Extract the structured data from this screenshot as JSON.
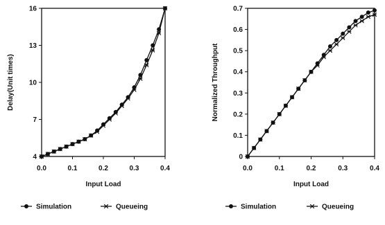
{
  "colors": {
    "ink": "#111111",
    "paper": "#ffffff"
  },
  "chart_data": [
    {
      "type": "line",
      "xlabel": "Input Load",
      "ylabel": "Delay(Unit times)",
      "xlim": [
        0.0,
        0.4
      ],
      "ylim": [
        4,
        16
      ],
      "xticks": [
        "0.0",
        "0.1",
        "0.2",
        "0.3",
        "0.4"
      ],
      "yticks": [
        "4",
        "7",
        "10",
        "13",
        "16"
      ],
      "grid": false,
      "legend_position": "bottom",
      "series": [
        {
          "name": "Simulation",
          "marker": "circle",
          "x": [
            0.0,
            0.02,
            0.04,
            0.06,
            0.08,
            0.1,
            0.12,
            0.14,
            0.16,
            0.18,
            0.2,
            0.22,
            0.24,
            0.26,
            0.28,
            0.3,
            0.32,
            0.34,
            0.36,
            0.38,
            0.4
          ],
          "y": [
            4.0,
            4.2,
            4.4,
            4.6,
            4.8,
            5.0,
            5.2,
            5.4,
            5.7,
            6.1,
            6.6,
            7.1,
            7.6,
            8.2,
            8.8,
            9.6,
            10.6,
            11.8,
            13.0,
            14.3,
            16.0
          ]
        },
        {
          "name": "Queueing",
          "marker": "cross",
          "x": [
            0.0,
            0.02,
            0.04,
            0.06,
            0.08,
            0.1,
            0.12,
            0.14,
            0.16,
            0.18,
            0.2,
            0.22,
            0.24,
            0.26,
            0.28,
            0.3,
            0.32,
            0.34,
            0.36,
            0.38,
            0.4
          ],
          "y": [
            4.0,
            4.2,
            4.4,
            4.6,
            4.8,
            5.0,
            5.2,
            5.4,
            5.7,
            6.0,
            6.5,
            7.0,
            7.5,
            8.1,
            8.7,
            9.4,
            10.3,
            11.4,
            12.6,
            14.0,
            16.0
          ]
        }
      ]
    },
    {
      "type": "line",
      "xlabel": "Input Load",
      "ylabel": "Normalized Throughput",
      "xlim": [
        0.0,
        0.4
      ],
      "ylim": [
        0,
        0.7
      ],
      "xticks": [
        "0.0",
        "0.1",
        "0.2",
        "0.3",
        "0.4"
      ],
      "yticks": [
        "0",
        "0.1",
        "0.2",
        "0.3",
        "0.4",
        "0.5",
        "0.6",
        "0.7"
      ],
      "grid": false,
      "legend_position": "bottom",
      "series": [
        {
          "name": "Simulation",
          "marker": "circle",
          "x": [
            0.0,
            0.02,
            0.04,
            0.06,
            0.08,
            0.1,
            0.12,
            0.14,
            0.16,
            0.18,
            0.2,
            0.22,
            0.24,
            0.26,
            0.28,
            0.3,
            0.32,
            0.34,
            0.36,
            0.38,
            0.4
          ],
          "y": [
            0.0,
            0.04,
            0.08,
            0.12,
            0.16,
            0.2,
            0.24,
            0.28,
            0.32,
            0.36,
            0.4,
            0.44,
            0.48,
            0.52,
            0.55,
            0.58,
            0.61,
            0.64,
            0.66,
            0.68,
            0.69
          ]
        },
        {
          "name": "Queueing",
          "marker": "cross",
          "x": [
            0.0,
            0.02,
            0.04,
            0.06,
            0.08,
            0.1,
            0.12,
            0.14,
            0.16,
            0.18,
            0.2,
            0.22,
            0.24,
            0.26,
            0.28,
            0.3,
            0.32,
            0.34,
            0.36,
            0.38,
            0.4
          ],
          "y": [
            0.0,
            0.04,
            0.08,
            0.12,
            0.16,
            0.2,
            0.24,
            0.28,
            0.32,
            0.36,
            0.4,
            0.43,
            0.47,
            0.5,
            0.53,
            0.56,
            0.59,
            0.62,
            0.64,
            0.66,
            0.67
          ]
        }
      ]
    }
  ]
}
